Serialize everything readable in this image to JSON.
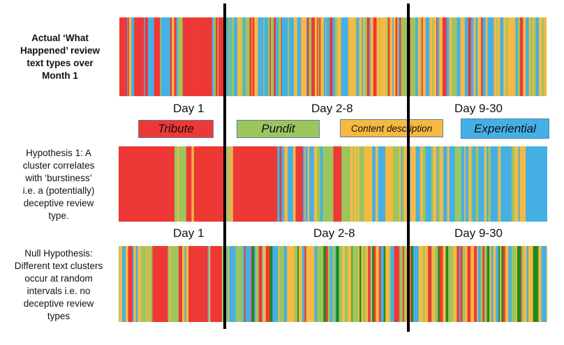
{
  "rows": [
    {
      "label": "Actual ‘What\nHappened’ review\ntext types over\nMonth 1"
    },
    {
      "label": "Hypothesis 1: A\ncluster correlates\nwith ‘burstiness’\ni.e. a (potentially)\ndeceptive review\ntype."
    },
    {
      "label": "Null Hypothesis:\nDifferent text clusters\noccur at random\nintervals i.e. no\ndeceptive review\ntypes"
    }
  ],
  "day_labels": {
    "day1": "Day 1",
    "day2_8": "Day 2-8",
    "day9_30": "Day 9-30"
  },
  "legend": [
    {
      "label": "Tribute",
      "color": "#EE3835"
    },
    {
      "label": "Pundit",
      "color": "#9DC55E"
    },
    {
      "label": "Content description",
      "color": "#F7B942"
    },
    {
      "label": "Experiential",
      "color": "#45B0E6"
    }
  ],
  "extra_color": "#1E8B20"
}
